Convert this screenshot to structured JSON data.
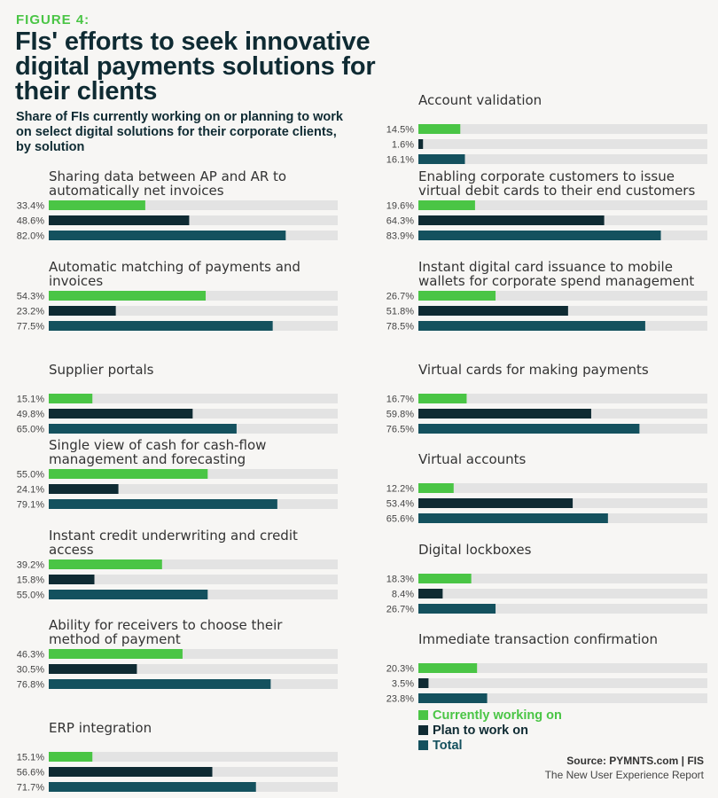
{
  "header": {
    "figure_label": "FIGURE 4:",
    "title": "FIs' efforts to seek innovative digital payments solutions for their clients",
    "subtitle": "Share of FIs currently working on or planning to work on select digital solutions for their corporate clients, by solution"
  },
  "colors": {
    "working": "#4ac545",
    "plan": "#0f2b33",
    "total": "#14515e",
    "track": "#e3e3e3"
  },
  "chart_data": {
    "type": "bar",
    "orientation": "horizontal",
    "xlim": [
      0,
      100
    ],
    "series_names": [
      "Currently working on",
      "Plan to work on",
      "Total"
    ],
    "categories": [
      {
        "name": "Sharing data between AP and AR to automatically net invoices",
        "lines": [
          "Sharing data between AP and AR to",
          "automatically net invoices"
        ],
        "values": [
          33.4,
          48.6,
          82.0
        ],
        "labels": [
          "33.4%",
          "48.6%",
          "82.0%"
        ]
      },
      {
        "name": "Automatic matching of payments and invoices",
        "lines": [
          "Automatic matching of payments and",
          "invoices"
        ],
        "values": [
          54.3,
          23.2,
          77.5
        ],
        "labels": [
          "54.3%",
          "23.2%",
          "77.5%"
        ]
      },
      {
        "name": "Supplier portals",
        "lines": [
          "Supplier portals"
        ],
        "values": [
          15.1,
          49.8,
          65.0
        ],
        "labels": [
          "15.1%",
          "49.8%",
          "65.0%"
        ]
      },
      {
        "name": "Single view of cash for cash-flow management and forecasting",
        "lines": [
          "Single view of cash for cash-flow",
          "management and forecasting"
        ],
        "values": [
          55.0,
          24.1,
          79.1
        ],
        "labels": [
          "55.0%",
          "24.1%",
          "79.1%"
        ]
      },
      {
        "name": "Instant credit underwriting and credit access",
        "lines": [
          "Instant credit underwriting and credit",
          "access"
        ],
        "values": [
          39.2,
          15.8,
          55.0
        ],
        "labels": [
          "39.2%",
          "15.8%",
          "55.0%"
        ]
      },
      {
        "name": "Ability for receivers to choose their method of payment",
        "lines": [
          "Ability for receivers to choose their",
          "method of payment"
        ],
        "values": [
          46.3,
          30.5,
          76.8
        ],
        "labels": [
          "46.3%",
          "30.5%",
          "76.8%"
        ]
      },
      {
        "name": "ERP integration",
        "lines": [
          "ERP integration"
        ],
        "values": [
          15.1,
          56.6,
          71.7
        ],
        "labels": [
          "15.1%",
          "56.6%",
          "71.7%"
        ]
      },
      {
        "name": "Account validation",
        "lines": [
          "Account validation"
        ],
        "values": [
          14.5,
          1.6,
          16.1
        ],
        "labels": [
          "14.5%",
          "1.6%",
          "16.1%"
        ]
      },
      {
        "name": "Enabling corporate customers to issue virtual debit cards to their end customers",
        "lines": [
          "Enabling corporate customers to issue",
          "virtual debit cards to their end customers"
        ],
        "values": [
          19.6,
          64.3,
          83.9
        ],
        "labels": [
          "19.6%",
          "64.3%",
          "83.9%"
        ]
      },
      {
        "name": "Instant digital card issuance to mobile wallets for corporate spend management",
        "lines": [
          "Instant digital card issuance to mobile",
          "wallets for corporate spend management"
        ],
        "values": [
          26.7,
          51.8,
          78.5
        ],
        "labels": [
          "26.7%",
          "51.8%",
          "78.5%"
        ]
      },
      {
        "name": "Virtual cards for making payments",
        "lines": [
          "Virtual cards for making payments"
        ],
        "values": [
          16.7,
          59.8,
          76.5
        ],
        "labels": [
          "16.7%",
          "59.8%",
          "76.5%"
        ]
      },
      {
        "name": "Virtual accounts",
        "lines": [
          "Virtual accounts"
        ],
        "values": [
          12.2,
          53.4,
          65.6
        ],
        "labels": [
          "12.2%",
          "53.4%",
          "65.6%"
        ]
      },
      {
        "name": "Digital lockboxes",
        "lines": [
          "Digital lockboxes"
        ],
        "values": [
          18.3,
          8.4,
          26.7
        ],
        "labels": [
          "18.3%",
          "8.4%",
          "26.7%"
        ]
      },
      {
        "name": "Immediate transaction confirmation",
        "lines": [
          "Immediate transaction confirmation"
        ],
        "values": [
          20.3,
          3.5,
          23.8
        ],
        "labels": [
          "20.3%",
          "3.5%",
          "23.8%"
        ]
      }
    ]
  },
  "legend": {
    "working": "Currently working on",
    "plan": "Plan to work on",
    "total": "Total"
  },
  "source": {
    "line1": "Source: PYMNTS.com  |  FIS",
    "line2": "The New User Experience Report"
  }
}
